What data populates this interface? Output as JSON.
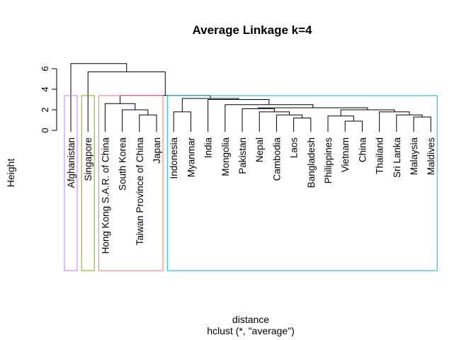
{
  "chart_data": {
    "type": "dendrogram",
    "title": "Average Linkage k=4",
    "xlabel": "distance",
    "sub": "hclust (*, \"average\")",
    "ylabel": "Height",
    "ylim": [
      0,
      7
    ],
    "yticks": [
      "0",
      "2",
      "4",
      "6"
    ],
    "leaves": [
      "Afghanistan",
      "Singapore",
      "Hong Kong S.A.R. of China",
      "South Korea",
      "Taiwan Province of China",
      "Japan",
      "Indonesia",
      "Myanmar",
      "India",
      "Mongolia",
      "Pakistan",
      "Nepal",
      "Cambodia",
      "Laos",
      "Bangladesh",
      "Philippines",
      "Vietnam",
      "China",
      "Thailand",
      "Sri Lanka",
      "Malaysia",
      "Maldives"
    ],
    "merges": [
      {
        "left": "Vietnam",
        "right": "China",
        "height": 0.9
      },
      {
        "left": "Laos",
        "right": "Bangladesh",
        "height": 1.2
      },
      {
        "left": "Malaysia",
        "right": "Maldives",
        "height": 1.3
      },
      {
        "left": "Philippines",
        "right": "m1",
        "height": 1.4
      },
      {
        "left": "Cambodia",
        "right": "m2",
        "height": 1.5
      },
      {
        "left": "Taiwan Province of China",
        "right": "Japan",
        "height": 1.5
      },
      {
        "left": "Sri Lanka",
        "right": "m3",
        "height": 1.5
      },
      {
        "left": "Thailand",
        "right": "m7",
        "height": 1.8
      },
      {
        "left": "Nepal",
        "right": "m5",
        "height": 1.8
      },
      {
        "left": "Indonesia",
        "right": "Myanmar",
        "height": 1.8
      },
      {
        "left": "m4",
        "right": "m8",
        "height": 2.0
      },
      {
        "left": "South Korea",
        "right": "m6",
        "height": 2.0
      },
      {
        "left": "Pakistan",
        "right": "m9",
        "height": 2.1
      },
      {
        "left": "m13",
        "right": "m11",
        "height": 2.2
      },
      {
        "left": "Mongolia",
        "right": "m14",
        "height": 2.5
      },
      {
        "left": "Hong Kong S.A.R. of China",
        "right": "m12",
        "height": 2.6
      },
      {
        "left": "India",
        "right": "m15",
        "height": 3.0
      },
      {
        "left": "m10",
        "right": "m17",
        "height": 3.1
      },
      {
        "left": "m16",
        "right": "m18",
        "height": 3.4
      },
      {
        "left": "Singapore",
        "right": "m19",
        "height": 5.7
      },
      {
        "left": "Afghanistan",
        "right": "m20",
        "height": 6.5
      }
    ],
    "clusters": [
      {
        "first": 0,
        "last": 0,
        "color": "#C77CFF"
      },
      {
        "first": 1,
        "last": 1,
        "color": "#7CAE00"
      },
      {
        "first": 2,
        "last": 5,
        "color": "#F8766D"
      },
      {
        "first": 6,
        "last": 21,
        "color": "#00BFC4"
      }
    ]
  }
}
